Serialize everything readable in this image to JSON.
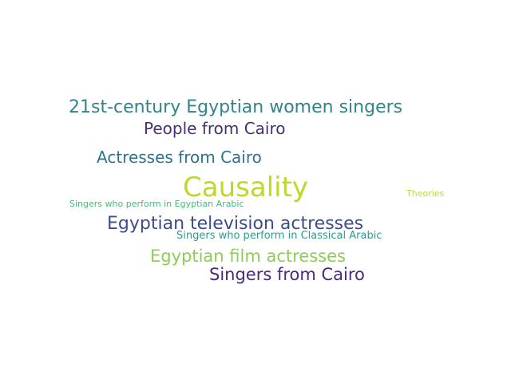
{
  "words": [
    {
      "text": "21st-century Egyptian women singers",
      "color": "#33838c"
    },
    {
      "text": "People from Cairo",
      "color": "#482f72"
    },
    {
      "text": "Actresses from Cairo",
      "color": "#2c738e"
    },
    {
      "text": "Causality",
      "color": "#c0d728"
    },
    {
      "text": "Theories",
      "color": "#b9dd3b"
    },
    {
      "text": "Singers who perform in Egyptian Arabic",
      "color": "#3fbd77"
    },
    {
      "text": "Egyptian television actresses",
      "color": "#3d4d88"
    },
    {
      "text": "Singers who perform in Classical Arabic",
      "color": "#2d9c8a"
    },
    {
      "text": "Egyptian film actresses",
      "color": "#8acf51"
    },
    {
      "text": "Singers from Cairo",
      "color": "#472a79"
    }
  ]
}
